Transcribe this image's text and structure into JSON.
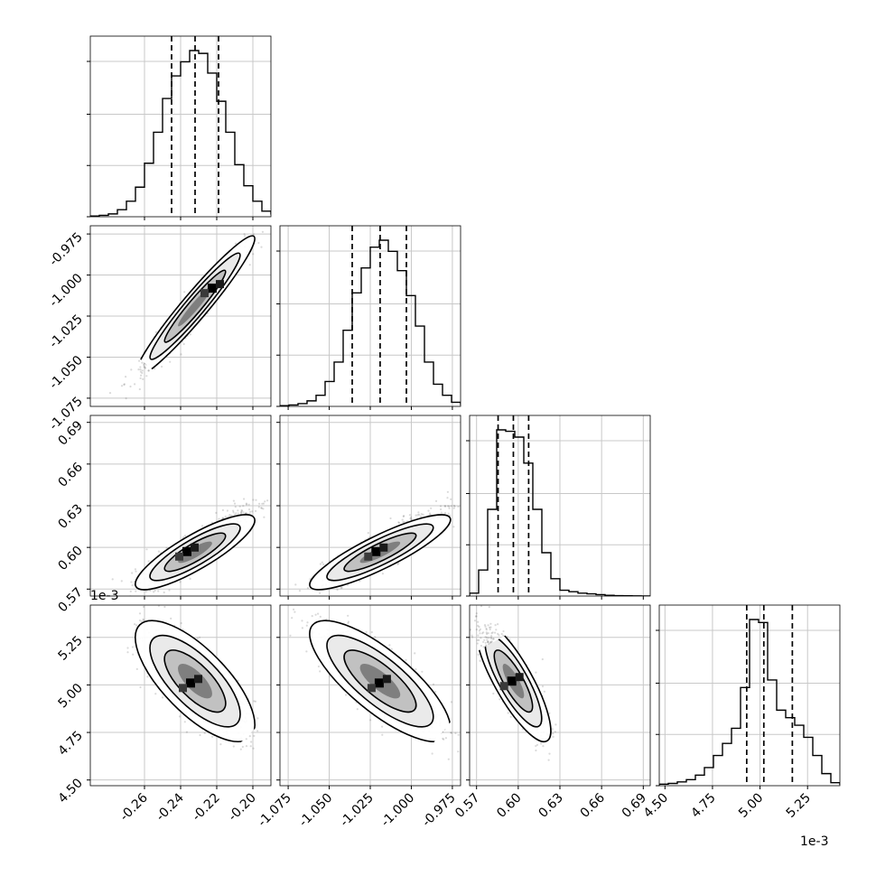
{
  "chart_data": {
    "type": "corner",
    "parameters": 4,
    "grid": true,
    "axes": {
      "p0": {
        "range": [
          -0.29,
          -0.19
        ],
        "ticks": [
          "-0.26",
          "-0.24",
          "-0.22",
          "-0.20"
        ],
        "tick_values": [
          -0.26,
          -0.24,
          -0.22,
          -0.2
        ]
      },
      "p1": {
        "range": [
          -1.08,
          -0.97
        ],
        "ticks": [
          "-1.075",
          "-1.050",
          "-1.025",
          "-1.000",
          "-0.975"
        ],
        "tick_values": [
          -1.075,
          -1.05,
          -1.025,
          -1.0,
          -0.975
        ]
      },
      "p2": {
        "range": [
          0.565,
          0.695
        ],
        "ticks": [
          "0.57",
          "0.60",
          "0.63",
          "0.66",
          "0.69"
        ],
        "tick_values": [
          0.57,
          0.6,
          0.63,
          0.66,
          0.69
        ]
      },
      "p3": {
        "range": [
          4.47,
          5.42
        ],
        "ticks": [
          "4.50",
          "4.75",
          "5.00",
          "5.25"
        ],
        "tick_values": [
          4.5,
          4.75,
          5.0,
          5.25
        ],
        "offset_label": "1e-3"
      }
    },
    "histograms": [
      {
        "param": "p0",
        "quantiles": [
          -0.245,
          -0.232,
          -0.219
        ],
        "bins": [
          -0.29,
          -0.285,
          -0.28,
          -0.275,
          -0.27,
          -0.265,
          -0.26,
          -0.255,
          -0.25,
          -0.245,
          -0.24,
          -0.235,
          -0.23,
          -0.225,
          -0.22,
          -0.215,
          -0.21,
          -0.205,
          -0.2,
          -0.195,
          -0.19
        ],
        "counts": [
          0.5,
          1,
          2,
          5,
          11,
          21,
          38,
          60,
          84,
          100,
          110,
          118,
          116,
          102,
          82,
          60,
          37,
          22,
          11,
          4,
          1.5
        ]
      },
      {
        "param": "p1",
        "quantiles": [
          -1.036,
          -1.019,
          -1.003
        ],
        "bins": [
          -1.08,
          -1.0745,
          -1.069,
          -1.0635,
          -1.058,
          -1.0525,
          -1.047,
          -1.0415,
          -1.036,
          -1.0305,
          -1.025,
          -1.0195,
          -1.014,
          -1.0085,
          -1.003,
          -0.9975,
          -0.992,
          -0.9865,
          -0.981,
          -0.9755,
          -0.97
        ],
        "counts": [
          0.5,
          1,
          2,
          4,
          8,
          18,
          32,
          55,
          82,
          100,
          115,
          120,
          112,
          98,
          80,
          58,
          32,
          16,
          8,
          3,
          1
        ]
      },
      {
        "param": "p2",
        "quantiles": [
          0.5855,
          0.5965,
          0.6075
        ],
        "bins": [
          0.565,
          0.5715,
          0.578,
          0.5845,
          0.591,
          0.5975,
          0.604,
          0.6105,
          0.617,
          0.6235,
          0.63,
          0.6365,
          0.643,
          0.6495,
          0.656,
          0.6625,
          0.669,
          0.6755,
          0.682,
          0.6885,
          0.695
        ],
        "counts": [
          2,
          18,
          60,
          115,
          114,
          110,
          92,
          60,
          30,
          12,
          4,
          3,
          2,
          1.5,
          1,
          0.5,
          0.3,
          0.2,
          0.1,
          0,
          0
        ]
      },
      {
        "param": "p3",
        "quantiles": [
          4.93,
          5.02,
          5.17
        ],
        "bins": [
          4.47,
          4.5175,
          4.565,
          4.6125,
          4.66,
          4.7075,
          4.755,
          4.8025,
          4.85,
          4.8975,
          4.945,
          4.9925,
          5.04,
          5.0875,
          5.135,
          5.1825,
          5.23,
          5.2775,
          5.325,
          5.3725,
          5.42
        ],
        "counts": [
          1,
          1.5,
          2.5,
          4,
          7,
          12,
          20,
          28,
          38,
          65,
          110,
          108,
          70,
          50,
          45,
          40,
          32,
          20,
          8,
          2,
          0.5
        ]
      }
    ],
    "pairs": [
      {
        "x": "p0",
        "y": "p1",
        "mean": [
          -0.232,
          -1.019
        ],
        "sd": [
          0.0135,
          0.0175
        ],
        "rho": 0.96,
        "peak": [
          -0.222,
          -1.008
        ]
      },
      {
        "x": "p0",
        "y": "p2",
        "mean": [
          -0.232,
          0.5965
        ],
        "sd": [
          0.0135,
          0.011
        ],
        "rho": 0.85,
        "peak": [
          -0.236,
          0.597
        ]
      },
      {
        "x": "p1",
        "y": "p2",
        "mean": [
          -1.019,
          0.5965
        ],
        "sd": [
          0.0175,
          0.011
        ],
        "rho": 0.87,
        "peak": [
          -1.021,
          0.597
        ]
      },
      {
        "x": "p0",
        "y": "p3",
        "mean": [
          -0.232,
          5.02
        ],
        "sd": [
          0.0135,
          0.13
        ],
        "rho": -0.72,
        "peak": [
          -0.234,
          5.01
        ]
      },
      {
        "x": "p1",
        "y": "p3",
        "mean": [
          -1.019,
          5.02
        ],
        "sd": [
          0.0175,
          0.13
        ],
        "rho": -0.78,
        "peak": [
          -1.019,
          5.01
        ]
      },
      {
        "x": "p2",
        "y": "p3",
        "mean": [
          0.5965,
          5.02
        ],
        "sd": [
          0.011,
          0.13
        ],
        "rho": -0.82,
        "peak": [
          0.596,
          5.02
        ]
      }
    ]
  }
}
